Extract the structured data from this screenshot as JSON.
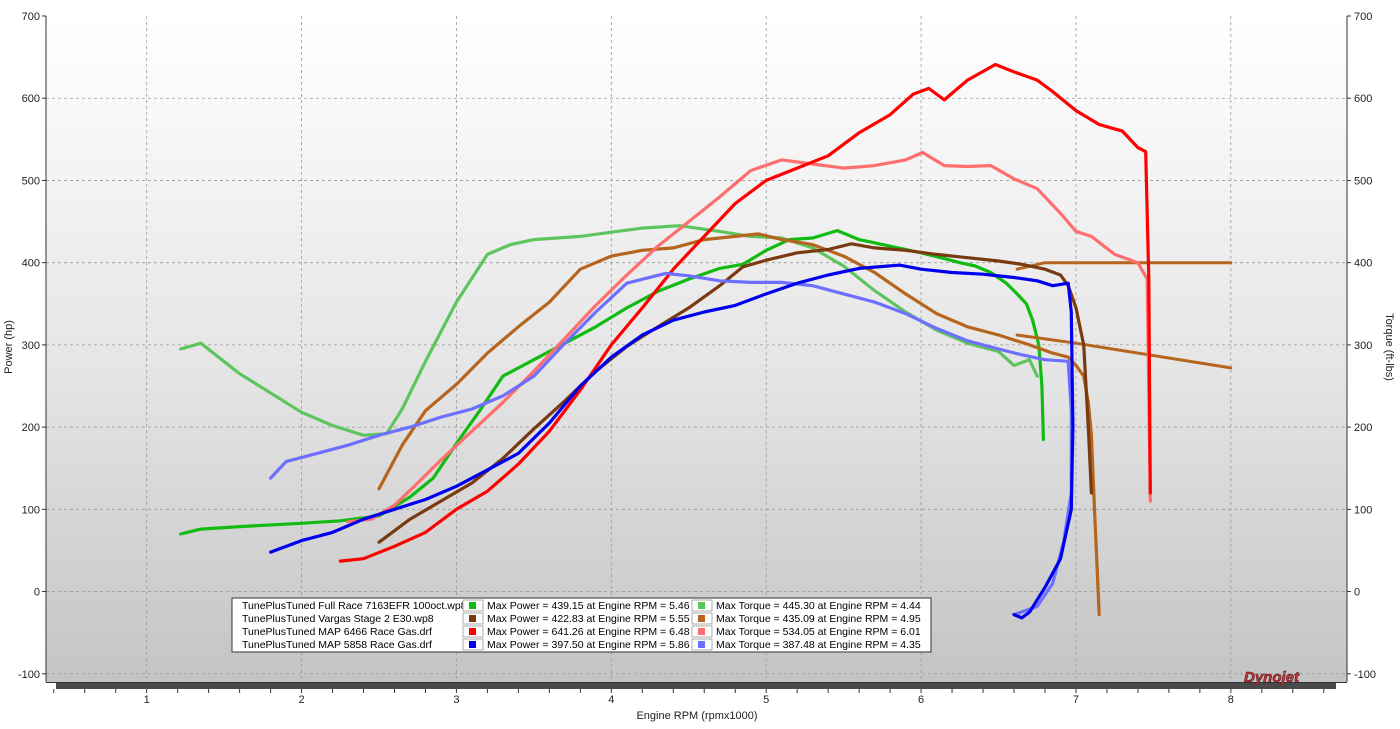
{
  "chart_data": {
    "type": "line",
    "xlabel": "Engine RPM (rpmx1000)",
    "ylabel_left": "Power (hp)",
    "ylabel_right": "Torque (ft-lbs)",
    "xlim": [
      0.35,
      8.75
    ],
    "ylim": [
      -110,
      700
    ],
    "x_ticks": [
      "1",
      "2",
      "3",
      "4",
      "5",
      "6",
      "7",
      "8"
    ],
    "y_ticks": [
      "-100",
      "0",
      "100",
      "200",
      "300",
      "400",
      "500",
      "600",
      "700"
    ],
    "grid": true,
    "legend_position": "bottom-left",
    "watermark": "Dynojet",
    "runs": [
      {
        "file": "TunePlusTuned Full Race 7163EFR 100oct.wp8",
        "power_label": "Max Power = 439.15 at Engine RPM = 5.46",
        "torque_label": "Max Torque = 445.30 at Engine RPM = 4.44",
        "power_color": "#11bb11",
        "torque_color": "#5ec55e",
        "power": [
          [
            1.22,
            70
          ],
          [
            1.35,
            76
          ],
          [
            1.6,
            79
          ],
          [
            2.0,
            83
          ],
          [
            2.25,
            86
          ],
          [
            2.5,
            92
          ],
          [
            2.7,
            115
          ],
          [
            2.85,
            138
          ],
          [
            3.0,
            180
          ],
          [
            3.15,
            220
          ],
          [
            3.3,
            262
          ],
          [
            3.5,
            282
          ],
          [
            3.7,
            302
          ],
          [
            3.9,
            322
          ],
          [
            4.1,
            345
          ],
          [
            4.3,
            365
          ],
          [
            4.5,
            380
          ],
          [
            4.7,
            393
          ],
          [
            4.85,
            398
          ],
          [
            5.0,
            415
          ],
          [
            5.15,
            428
          ],
          [
            5.3,
            430
          ],
          [
            5.46,
            439
          ],
          [
            5.6,
            428
          ],
          [
            5.8,
            420
          ],
          [
            6.0,
            412
          ],
          [
            6.15,
            405
          ],
          [
            6.25,
            400
          ],
          [
            6.35,
            396
          ],
          [
            6.45,
            388
          ],
          [
            6.55,
            375
          ],
          [
            6.62,
            362
          ],
          [
            6.68,
            350
          ],
          [
            6.72,
            330
          ],
          [
            6.76,
            300
          ],
          [
            6.78,
            250
          ],
          [
            6.79,
            185
          ]
        ],
        "torque": [
          [
            1.22,
            295
          ],
          [
            1.35,
            302
          ],
          [
            1.6,
            265
          ],
          [
            2.0,
            218
          ],
          [
            2.2,
            202
          ],
          [
            2.4,
            190
          ],
          [
            2.55,
            192
          ],
          [
            2.65,
            222
          ],
          [
            2.8,
            280
          ],
          [
            3.0,
            352
          ],
          [
            3.2,
            410
          ],
          [
            3.35,
            422
          ],
          [
            3.5,
            428
          ],
          [
            3.8,
            432
          ],
          [
            4.0,
            437
          ],
          [
            4.2,
            442
          ],
          [
            4.44,
            445
          ],
          [
            4.7,
            438
          ],
          [
            4.9,
            432
          ],
          [
            5.1,
            430
          ],
          [
            5.3,
            418
          ],
          [
            5.5,
            396
          ],
          [
            5.7,
            366
          ],
          [
            5.9,
            340
          ],
          [
            6.1,
            318
          ],
          [
            6.3,
            302
          ],
          [
            6.5,
            292
          ],
          [
            6.6,
            275
          ],
          [
            6.7,
            282
          ],
          [
            6.75,
            262
          ]
        ]
      },
      {
        "file": "TunePlusTuned Vargas Stage 2 E30.wp8",
        "power_label": "Max Power = 422.83 at Engine RPM = 5.55",
        "torque_label": "Max Torque = 435.09 at Engine RPM = 4.95",
        "power_color": "#7a3a10",
        "torque_color": "#b5651d",
        "power": [
          [
            2.5,
            60
          ],
          [
            2.7,
            88
          ],
          [
            2.9,
            110
          ],
          [
            3.1,
            132
          ],
          [
            3.3,
            162
          ],
          [
            3.5,
            198
          ],
          [
            3.7,
            232
          ],
          [
            3.9,
            268
          ],
          [
            4.1,
            298
          ],
          [
            4.3,
            322
          ],
          [
            4.5,
            345
          ],
          [
            4.7,
            372
          ],
          [
            4.85,
            395
          ],
          [
            5.0,
            403
          ],
          [
            5.2,
            412
          ],
          [
            5.4,
            416
          ],
          [
            5.55,
            423
          ],
          [
            5.7,
            418
          ],
          [
            5.9,
            415
          ],
          [
            6.1,
            410
          ],
          [
            6.3,
            406
          ],
          [
            6.5,
            402
          ],
          [
            6.65,
            398
          ],
          [
            6.8,
            392
          ],
          [
            6.9,
            385
          ],
          [
            6.95,
            372
          ],
          [
            7.0,
            345
          ],
          [
            7.05,
            300
          ],
          [
            7.08,
            200
          ],
          [
            7.1,
            120
          ]
        ],
        "torque": [
          [
            2.5,
            125
          ],
          [
            2.65,
            178
          ],
          [
            2.8,
            220
          ],
          [
            3.0,
            252
          ],
          [
            3.2,
            290
          ],
          [
            3.4,
            322
          ],
          [
            3.6,
            352
          ],
          [
            3.8,
            392
          ],
          [
            4.0,
            408
          ],
          [
            4.2,
            415
          ],
          [
            4.4,
            418
          ],
          [
            4.6,
            428
          ],
          [
            4.8,
            432
          ],
          [
            4.95,
            435
          ],
          [
            5.1,
            428
          ],
          [
            5.3,
            422
          ],
          [
            5.5,
            408
          ],
          [
            5.7,
            388
          ],
          [
            5.9,
            362
          ],
          [
            6.1,
            338
          ],
          [
            6.3,
            322
          ],
          [
            6.5,
            312
          ],
          [
            6.7,
            300
          ],
          [
            6.85,
            290
          ],
          [
            6.95,
            285
          ],
          [
            7.0,
            275
          ],
          [
            7.05,
            262
          ],
          [
            7.08,
            230
          ],
          [
            7.1,
            190
          ],
          [
            7.12,
            100
          ],
          [
            7.15,
            -28
          ]
        ],
        "extra_lines": [
          [
            [
              6.62,
              392
            ],
            [
              6.8,
              400
            ],
            [
              7.0,
              400
            ],
            [
              8.0,
              400
            ]
          ],
          [
            [
              6.62,
              312
            ],
            [
              7.0,
              302
            ],
            [
              8.0,
              272
            ]
          ]
        ]
      },
      {
        "file": "TunePlusTuned MAP 6466 Race Gas.drf",
        "power_label": "Max Power = 641.26 at Engine RPM = 6.48",
        "torque_label": "Max Torque = 534.05 at Engine RPM = 6.01",
        "power_color": "#ff0000",
        "torque_color": "#ff6e6e",
        "power": [
          [
            2.25,
            37
          ],
          [
            2.4,
            40
          ],
          [
            2.6,
            55
          ],
          [
            2.8,
            72
          ],
          [
            3.0,
            100
          ],
          [
            3.2,
            122
          ],
          [
            3.4,
            155
          ],
          [
            3.6,
            195
          ],
          [
            3.8,
            245
          ],
          [
            4.0,
            300
          ],
          [
            4.2,
            345
          ],
          [
            4.4,
            392
          ],
          [
            4.6,
            432
          ],
          [
            4.8,
            472
          ],
          [
            5.0,
            500
          ],
          [
            5.2,
            515
          ],
          [
            5.4,
            530
          ],
          [
            5.6,
            558
          ],
          [
            5.8,
            580
          ],
          [
            5.95,
            605
          ],
          [
            6.05,
            612
          ],
          [
            6.15,
            598
          ],
          [
            6.3,
            622
          ],
          [
            6.48,
            641
          ],
          [
            6.6,
            632
          ],
          [
            6.75,
            622
          ],
          [
            6.85,
            608
          ],
          [
            7.0,
            585
          ],
          [
            7.15,
            568
          ],
          [
            7.3,
            560
          ],
          [
            7.4,
            540
          ],
          [
            7.45,
            535
          ],
          [
            7.47,
            380
          ],
          [
            7.48,
            120
          ]
        ],
        "torque": [
          [
            2.3,
            85
          ],
          [
            2.45,
            88
          ],
          [
            2.6,
            105
          ],
          [
            2.75,
            132
          ],
          [
            2.9,
            160
          ],
          [
            3.1,
            195
          ],
          [
            3.3,
            230
          ],
          [
            3.5,
            268
          ],
          [
            3.7,
            308
          ],
          [
            3.9,
            348
          ],
          [
            4.1,
            385
          ],
          [
            4.3,
            420
          ],
          [
            4.5,
            450
          ],
          [
            4.7,
            480
          ],
          [
            4.9,
            512
          ],
          [
            5.1,
            525
          ],
          [
            5.3,
            520
          ],
          [
            5.5,
            515
          ],
          [
            5.7,
            518
          ],
          [
            5.9,
            525
          ],
          [
            6.01,
            534
          ],
          [
            6.15,
            518
          ],
          [
            6.3,
            517
          ],
          [
            6.45,
            518
          ],
          [
            6.6,
            502
          ],
          [
            6.75,
            490
          ],
          [
            6.9,
            460
          ],
          [
            7.0,
            438
          ],
          [
            7.1,
            432
          ],
          [
            7.25,
            410
          ],
          [
            7.4,
            400
          ],
          [
            7.46,
            380
          ],
          [
            7.47,
            240
          ],
          [
            7.48,
            110
          ]
        ]
      },
      {
        "file": "TunePlusTuned MAP 5858 Race Gas.drf",
        "power_label": "Max Power = 397.50 at Engine RPM = 5.86",
        "torque_label": "Max Torque = 387.48 at Engine RPM = 4.35",
        "power_color": "#0000ee",
        "torque_color": "#6e6eff",
        "power": [
          [
            1.8,
            48
          ],
          [
            2.0,
            62
          ],
          [
            2.2,
            72
          ],
          [
            2.4,
            88
          ],
          [
            2.6,
            100
          ],
          [
            2.8,
            112
          ],
          [
            3.0,
            128
          ],
          [
            3.2,
            148
          ],
          [
            3.4,
            168
          ],
          [
            3.6,
            205
          ],
          [
            3.8,
            250
          ],
          [
            4.0,
            285
          ],
          [
            4.2,
            312
          ],
          [
            4.4,
            330
          ],
          [
            4.6,
            340
          ],
          [
            4.8,
            348
          ],
          [
            5.0,
            362
          ],
          [
            5.2,
            375
          ],
          [
            5.4,
            385
          ],
          [
            5.6,
            393
          ],
          [
            5.86,
            397
          ],
          [
            6.0,
            392
          ],
          [
            6.2,
            388
          ],
          [
            6.4,
            386
          ],
          [
            6.6,
            382
          ],
          [
            6.75,
            378
          ],
          [
            6.85,
            372
          ],
          [
            6.95,
            375
          ],
          [
            6.97,
            340
          ],
          [
            6.98,
            200
          ],
          [
            6.97,
            100
          ],
          [
            6.9,
            40
          ],
          [
            6.8,
            5
          ],
          [
            6.7,
            -25
          ],
          [
            6.65,
            -32
          ],
          [
            6.6,
            -28
          ]
        ],
        "torque": [
          [
            1.8,
            138
          ],
          [
            1.9,
            158
          ],
          [
            2.1,
            168
          ],
          [
            2.3,
            178
          ],
          [
            2.5,
            190
          ],
          [
            2.7,
            200
          ],
          [
            2.9,
            212
          ],
          [
            3.1,
            222
          ],
          [
            3.3,
            238
          ],
          [
            3.5,
            262
          ],
          [
            3.7,
            302
          ],
          [
            3.9,
            340
          ],
          [
            4.1,
            375
          ],
          [
            4.35,
            387
          ],
          [
            4.5,
            384
          ],
          [
            4.7,
            378
          ],
          [
            4.9,
            376
          ],
          [
            5.1,
            376
          ],
          [
            5.3,
            372
          ],
          [
            5.5,
            362
          ],
          [
            5.7,
            352
          ],
          [
            5.9,
            338
          ],
          [
            6.1,
            320
          ],
          [
            6.3,
            305
          ],
          [
            6.5,
            295
          ],
          [
            6.65,
            288
          ],
          [
            6.8,
            282
          ],
          [
            6.95,
            280
          ],
          [
            6.97,
            220
          ],
          [
            6.97,
            120
          ],
          [
            6.92,
            60
          ],
          [
            6.85,
            10
          ],
          [
            6.75,
            -18
          ],
          [
            6.6,
            -28
          ]
        ]
      }
    ]
  }
}
